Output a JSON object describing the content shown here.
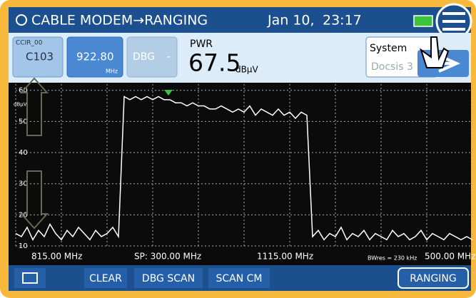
{
  "header": {
    "title": "CABLE MODEM→RANGING",
    "date": "Jan 10,",
    "time": "23:17"
  },
  "channel": {
    "label": "CCIR_00",
    "value": "C103"
  },
  "frequency": {
    "value": "922.80",
    "unit": "MHz"
  },
  "dbg": {
    "label": "DBG",
    "value": "-"
  },
  "power": {
    "label": "PWR",
    "value": "67.5",
    "unit": "dBµV"
  },
  "system": {
    "label": "System",
    "value": "Docsis 3"
  },
  "spectrum": {
    "unit": "dBµV",
    "ylim": [
      10,
      62
    ],
    "yticks": [
      10,
      20,
      30,
      40,
      50,
      60
    ],
    "trace": [
      14,
      13,
      16,
      12,
      15,
      13,
      17,
      14,
      12,
      15,
      13,
      16,
      14,
      12,
      15,
      13,
      14,
      16,
      13,
      58,
      57,
      58,
      57,
      58,
      57,
      58,
      57,
      57,
      56,
      56,
      55,
      56,
      55,
      55,
      54,
      54,
      55,
      54,
      53,
      54,
      53,
      55,
      52,
      54,
      53,
      52,
      54,
      52,
      53,
      51,
      53,
      52,
      13,
      15,
      12,
      14,
      13,
      16,
      12,
      14,
      13,
      15,
      12,
      14,
      13,
      12,
      15,
      13,
      14,
      12,
      13,
      15,
      12,
      14,
      13,
      12,
      14,
      13,
      12,
      13,
      12
    ],
    "labels": {
      "start": "815.00 MHz",
      "span": "SP: 300.00 MHz",
      "marker": "1115.00 MHz",
      "bw": "BWres = 230 kHz",
      "ref": "500.00 MHz"
    }
  },
  "toolbar": [
    "CLEAR",
    "DBG SCAN",
    "SCAN CM",
    "RANGING"
  ]
}
